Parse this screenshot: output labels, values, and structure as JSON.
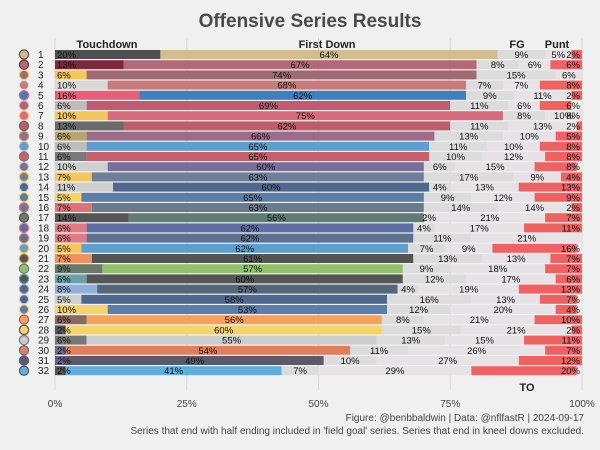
{
  "chart_data": {
    "type": "bar",
    "orientation": "horizontal-stacked-100",
    "title": "Offensive Series Results",
    "series_names": [
      "Touchdown",
      "First Down",
      "FG",
      "Punt",
      "TO"
    ],
    "header_labels": {
      "touchdown": "Touchdown",
      "first_down": "First Down",
      "fg": "FG",
      "punt": "Punt",
      "to": "TO"
    },
    "x_ticks": [
      "0%",
      "25%",
      "50%",
      "75%",
      "100%"
    ],
    "xlim": [
      0,
      100
    ],
    "caption_line1": "Figure: @benbbaldwin | Data: @nflfastR | 2024-09-17",
    "caption_line2": "Series that end with half ending included in 'field goal' series. Series that end in kneel downs excluded.",
    "colors": {
      "background": "#f0f0f0",
      "light_segment": "#dcdcdc",
      "to_segment": "#f06262",
      "title": "#4a4a4a",
      "text": "#222222"
    },
    "teams": [
      {
        "rank": "1",
        "logo": "saints-logo",
        "td": 20,
        "fd": 64,
        "fg": 9,
        "punt": 5,
        "to": 2,
        "td_label": "20%",
        "fd_label": "64%",
        "fg_label": "9%",
        "punt_label": "5%",
        "to_label": "2%",
        "dark": "#4f4f4f",
        "mid": "#d3bc8d"
      },
      {
        "rank": "2",
        "logo": "commanders-logo",
        "td": 13,
        "fd": 67,
        "fg": 8,
        "punt": 6,
        "to": 6,
        "td_label": "13%",
        "fd_label": "67%",
        "fg_label": "8%",
        "punt_label": "6%",
        "to_label": "6%",
        "dark": "#7a2a3a",
        "mid": "#b06a7a"
      },
      {
        "rank": "3",
        "logo": "commanders-alt-logo",
        "td": 6,
        "fd": 74,
        "fg": 15,
        "punt": 6,
        "to": 0,
        "td_label": "6%",
        "fd_label": "74%",
        "fg_label": "15%",
        "punt_label": "6%",
        "to_label": "",
        "dark": "#f5c75a",
        "mid": "#9e6b74"
      },
      {
        "rank": "4",
        "logo": "49ers-logo",
        "td": 10,
        "fd": 68,
        "fg": 7,
        "punt": 7,
        "to": 8,
        "td_label": "10%",
        "fd_label": "68%",
        "fg_label": "7%",
        "punt_label": "7%",
        "to_label": "8%",
        "dark": "#d8d8d8",
        "mid": "#c97a7a"
      },
      {
        "rank": "5",
        "logo": "bills-logo",
        "td": 16,
        "fd": 62,
        "fg": 9,
        "punt": 11,
        "to": 2,
        "td_label": "16%",
        "fd_label": "62%",
        "fg_label": "9%",
        "punt_label": "11%",
        "to_label": "2%",
        "dark": "#e85e79",
        "mid": "#3f7ec0"
      },
      {
        "rank": "6",
        "logo": "cardinals-logo",
        "td": 6,
        "fd": 69,
        "fg": 11,
        "punt": 6,
        "to": 6,
        "td_label": "6%",
        "fd_label": "69%",
        "fg_label": "11%",
        "punt_label": "6%",
        "to_label": "6%",
        "dark": "#bdbdbd",
        "mid": "#c25a73"
      },
      {
        "rank": "7",
        "logo": "chiefs-logo",
        "td": 10,
        "fd": 75,
        "fg": 8,
        "punt": 10,
        "to": 8,
        "td_label": "10%",
        "fd_label": "75%",
        "fg_label": "8%",
        "punt_label": "10%",
        "to_label": "8%",
        "dark": "#f5c75a",
        "mid": "#d9697c"
      },
      {
        "rank": "8",
        "logo": "buccaneers-logo",
        "td": 13,
        "fd": 62,
        "fg": 11,
        "punt": 13,
        "to": 2,
        "td_label": "13%",
        "fd_label": "62%",
        "fg_label": "11%",
        "punt_label": "13%",
        "to_label": "2%",
        "dark": "#6a6a6a",
        "mid": "#bb5e6a"
      },
      {
        "rank": "9",
        "logo": "saints-alt-logo",
        "td": 6,
        "fd": 66,
        "fg": 13,
        "punt": 10,
        "to": 5,
        "td_label": "6%",
        "fd_label": "66%",
        "fg_label": "13%",
        "punt_label": "10%",
        "to_label": "5%",
        "dark": "#b8a36a",
        "mid": "#9c6b8a"
      },
      {
        "rank": "10",
        "logo": "lions-logo",
        "td": 6,
        "fd": 65,
        "fg": 11,
        "punt": 10,
        "to": 8,
        "td_label": "6%",
        "fd_label": "65%",
        "fg_label": "11%",
        "punt_label": "10%",
        "to_label": "8%",
        "dark": "#bdbdbd",
        "mid": "#5d9fd0"
      },
      {
        "rank": "11",
        "logo": "falcons-logo",
        "td": 6,
        "fd": 65,
        "fg": 10,
        "punt": 12,
        "to": 8,
        "td_label": "6%",
        "fd_label": "65%",
        "fg_label": "10%",
        "punt_label": "12%",
        "to_label": "8%",
        "dark": "#7a7a7a",
        "mid": "#c8606c"
      },
      {
        "rank": "12",
        "logo": "dolphins-logo",
        "td": 10,
        "fd": 60,
        "fg": 6,
        "punt": 15,
        "to": 8,
        "td_label": "10%",
        "fd_label": "60%",
        "fg_label": "6%",
        "punt_label": "15%",
        "to_label": "8%",
        "dark": "#cfcfcf",
        "mid": "#7c6d9a"
      },
      {
        "rank": "13",
        "logo": "colts-logo",
        "td": 7,
        "fd": 63,
        "fg": 17,
        "punt": 9,
        "to": 4,
        "td_label": "7%",
        "fd_label": "63%",
        "fg_label": "17%",
        "punt_label": "9%",
        "to_label": "4%",
        "dark": "#f5c75a",
        "mid": "#6f7f9a"
      },
      {
        "rank": "14",
        "logo": "seahawks-logo",
        "td": 11,
        "fd": 60,
        "fg": 4,
        "punt": 13,
        "to": 13,
        "td_label": "11%",
        "fd_label": "60%",
        "fg_label": "4%",
        "punt_label": "13%",
        "to_label": "13%",
        "dark": "#cfcfcf",
        "mid": "#4f6890"
      },
      {
        "rank": "15",
        "logo": "rams-logo",
        "td": 5,
        "fd": 65,
        "fg": 9,
        "punt": 12,
        "to": 9,
        "td_label": "5%",
        "fd_label": "65%",
        "fg_label": "9%",
        "punt_label": "12%",
        "to_label": "9%",
        "dark": "#f5d46a",
        "mid": "#5a7ea8"
      },
      {
        "rank": "16",
        "logo": "texans-logo",
        "td": 7,
        "fd": 63,
        "fg": 14,
        "punt": 14,
        "to": 2,
        "td_label": "7%",
        "fd_label": "63%",
        "fg_label": "14%",
        "punt_label": "14%",
        "to_label": "2%",
        "dark": "#e0707a",
        "mid": "#6d7a8e"
      },
      {
        "rank": "17",
        "logo": "jets-logo",
        "td": 14,
        "fd": 56,
        "fg": 2,
        "punt": 21,
        "to": 7,
        "td_label": "14%",
        "fd_label": "56%",
        "fg_label": "2%",
        "punt_label": "21%",
        "to_label": "7%",
        "dark": "#555555",
        "mid": "#5f7d72"
      },
      {
        "rank": "18",
        "logo": "giants-logo",
        "td": 6,
        "fd": 62,
        "fg": 4,
        "punt": 17,
        "to": 11,
        "td_label": "6%",
        "fd_label": "62%",
        "fg_label": "4%",
        "punt_label": "17%",
        "to_label": "11%",
        "dark": "#e07a84",
        "mid": "#5e6fa6"
      },
      {
        "rank": "19",
        "logo": "bears-logo",
        "td": 6,
        "fd": 62,
        "fg": 11,
        "punt": 21,
        "to": 0,
        "td_label": "6%",
        "fd_label": "62%",
        "fg_label": "11%",
        "punt_label": "21%",
        "to_label": "",
        "dark": "#e07a84",
        "mid": "#5f6f8e"
      },
      {
        "rank": "20",
        "logo": "chargers-logo",
        "td": 5,
        "fd": 62,
        "fg": 7,
        "punt": 9,
        "to": 16,
        "td_label": "5%",
        "fd_label": "62%",
        "fg_label": "7%",
        "punt_label": "9%",
        "to_label": "16%",
        "dark": "#f5c75a",
        "mid": "#5d9fd0"
      },
      {
        "rank": "21",
        "logo": "bengals-logo",
        "td": 7,
        "fd": 61,
        "fg": 13,
        "punt": 13,
        "to": 7,
        "td_label": "7%",
        "fd_label": "61%",
        "fg_label": "13%",
        "punt_label": "13%",
        "to_label": "7%",
        "dark": "#f0935a",
        "mid": "#555555"
      },
      {
        "rank": "22",
        "logo": "packers-logo",
        "td": 9,
        "fd": 57,
        "fg": 9,
        "punt": 18,
        "to": 7,
        "td_label": "9%",
        "fd_label": "57%",
        "fg_label": "9%",
        "punt_label": "18%",
        "to_label": "7%",
        "dark": "#6a7a6a",
        "mid": "#8fc26a"
      },
      {
        "rank": "23",
        "logo": "jaguars-logo",
        "td": 6,
        "fd": 60,
        "fg": 12,
        "punt": 17,
        "to": 6,
        "td_label": "6%",
        "fd_label": "60%",
        "fg_label": "12%",
        "punt_label": "17%",
        "to_label": "6%",
        "dark": "#6aa0a8",
        "mid": "#555555"
      },
      {
        "rank": "24",
        "logo": "cowboys-logo",
        "td": 8,
        "fd": 57,
        "fg": 4,
        "punt": 19,
        "to": 13,
        "td_label": "8%",
        "fd_label": "57%",
        "fg_label": "4%",
        "punt_label": "19%",
        "to_label": "13%",
        "dark": "#8fb0d8",
        "mid": "#56657a"
      },
      {
        "rank": "25",
        "logo": "titans-logo",
        "td": 5,
        "fd": 58,
        "fg": 16,
        "punt": 13,
        "to": 7,
        "td_label": "5%",
        "fd_label": "58%",
        "fg_label": "16%",
        "punt_label": "13%",
        "to_label": "7%",
        "dark": "#cfcfcf",
        "mid": "#4f6890"
      },
      {
        "rank": "26",
        "logo": "rams-alt-logo",
        "td": 10,
        "fd": 53,
        "fg": 12,
        "punt": 20,
        "to": 4,
        "td_label": "10%",
        "fd_label": "53%",
        "fg_label": "12%",
        "punt_label": "20%",
        "to_label": "4%",
        "dark": "#f5d46a",
        "mid": "#5a7ea8"
      },
      {
        "rank": "27",
        "logo": "browns-logo",
        "td": 6,
        "fd": 56,
        "fg": 8,
        "punt": 21,
        "to": 10,
        "td_label": "6%",
        "fd_label": "56%",
        "fg_label": "8%",
        "punt_label": "21%",
        "to_label": "10%",
        "dark": "#8a6a5a",
        "mid": "#f7a05a"
      },
      {
        "rank": "28",
        "logo": "steelers-logo",
        "td": 2,
        "fd": 60,
        "fg": 15,
        "punt": 21,
        "to": 2,
        "td_label": "2%",
        "fd_label": "60%",
        "fg_label": "15%",
        "punt_label": "21%",
        "to_label": "2%",
        "dark": "#555555",
        "mid": "#f5d46a"
      },
      {
        "rank": "29",
        "logo": "raiders-logo",
        "td": 6,
        "fd": 55,
        "fg": 13,
        "punt": 15,
        "to": 11,
        "td_label": "6%",
        "fd_label": "55%",
        "fg_label": "13%",
        "punt_label": "15%",
        "to_label": "11%",
        "dark": "#777777",
        "mid": "#cccccc"
      },
      {
        "rank": "30",
        "logo": "broncos-logo",
        "td": 2,
        "fd": 54,
        "fg": 11,
        "punt": 26,
        "to": 7,
        "td_label": "2%",
        "fd_label": "54%",
        "fg_label": "11%",
        "punt_label": "26%",
        "to_label": "7%",
        "dark": "#5f6f8e",
        "mid": "#e0805a"
      },
      {
        "rank": "31",
        "logo": "ravens-logo",
        "td": 2,
        "fd": 49,
        "fg": 10,
        "punt": 27,
        "to": 12,
        "td_label": "2%",
        "fd_label": "49%",
        "fg_label": "10%",
        "punt_label": "27%",
        "to_label": "12%",
        "dark": "#6a5a8a",
        "mid": "#5a5a6a"
      },
      {
        "rank": "32",
        "logo": "panthers-logo",
        "td": 2,
        "fd": 41,
        "fg": 7,
        "punt": 29,
        "to": 20,
        "td_label": "2%",
        "fd_label": "41%",
        "fg_label": "7%",
        "punt_label": "29%",
        "to_label": "20%",
        "dark": "#555555",
        "mid": "#5faee0"
      }
    ]
  }
}
